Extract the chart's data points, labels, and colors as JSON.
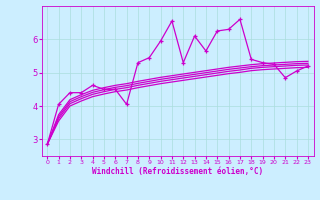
{
  "xlabel": "Windchill (Refroidissement éolien,°C)",
  "bg_color": "#cceeff",
  "line_color": "#cc00cc",
  "grid_color": "#aadddd",
  "x_values": [
    0,
    1,
    2,
    3,
    4,
    5,
    6,
    7,
    8,
    9,
    10,
    11,
    12,
    13,
    14,
    15,
    16,
    17,
    18,
    19,
    20,
    21,
    22,
    23
  ],
  "main_y": [
    2.85,
    4.05,
    4.4,
    4.4,
    4.62,
    4.5,
    4.5,
    4.05,
    5.3,
    5.45,
    5.95,
    6.55,
    5.3,
    6.1,
    5.65,
    6.25,
    6.3,
    6.6,
    5.4,
    5.3,
    5.25,
    4.85,
    5.05,
    5.2
  ],
  "smooth_lines": [
    [
      2.85,
      3.55,
      4.0,
      4.15,
      4.28,
      4.36,
      4.43,
      4.48,
      4.55,
      4.61,
      4.67,
      4.72,
      4.77,
      4.82,
      4.87,
      4.92,
      4.97,
      5.01,
      5.06,
      5.09,
      5.11,
      5.13,
      5.15,
      5.16
    ],
    [
      2.85,
      3.62,
      4.07,
      4.22,
      4.35,
      4.43,
      4.5,
      4.55,
      4.62,
      4.68,
      4.74,
      4.79,
      4.84,
      4.89,
      4.94,
      4.99,
      5.04,
      5.08,
      5.13,
      5.16,
      5.18,
      5.2,
      5.22,
      5.23
    ],
    [
      2.85,
      3.68,
      4.13,
      4.28,
      4.41,
      4.49,
      4.56,
      4.61,
      4.68,
      4.74,
      4.8,
      4.85,
      4.9,
      4.95,
      5.0,
      5.05,
      5.1,
      5.14,
      5.18,
      5.21,
      5.23,
      5.25,
      5.27,
      5.28
    ],
    [
      2.85,
      3.74,
      4.19,
      4.34,
      4.47,
      4.55,
      4.62,
      4.67,
      4.74,
      4.8,
      4.86,
      4.91,
      4.96,
      5.01,
      5.06,
      5.11,
      5.16,
      5.2,
      5.24,
      5.27,
      5.29,
      5.31,
      5.33,
      5.34
    ]
  ],
  "ylim": [
    2.5,
    7.0
  ],
  "yticks": [
    3,
    4,
    5,
    6
  ],
  "xticks": [
    0,
    1,
    2,
    3,
    4,
    5,
    6,
    7,
    8,
    9,
    10,
    11,
    12,
    13,
    14,
    15,
    16,
    17,
    18,
    19,
    20,
    21,
    22,
    23
  ]
}
